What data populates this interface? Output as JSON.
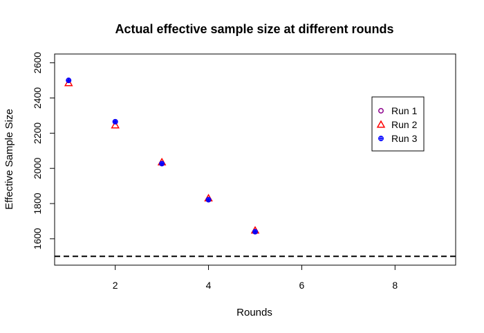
{
  "chart_data": {
    "type": "scatter",
    "title": "Actual effective sample size at different rounds",
    "xlabel": "Rounds",
    "ylabel": "Effective Sample Size",
    "xlim": [
      0.7,
      9.3
    ],
    "ylim": [
      1450,
      2650
    ],
    "x_ticks": [
      2,
      4,
      6,
      8
    ],
    "y_ticks": [
      1600,
      1800,
      2000,
      2200,
      2400,
      2600
    ],
    "reference_line": {
      "y": 1500,
      "style": "dashed"
    },
    "legend_position": "top-right",
    "series": [
      {
        "name": "Run 1",
        "marker": "circle",
        "color": "#8B008B",
        "x": [
          1,
          2,
          3,
          4,
          5
        ],
        "y": [
          2500,
          2265,
          2027,
          1822,
          1640
        ]
      },
      {
        "name": "Run 2",
        "marker": "triangle",
        "color": "#FF0000",
        "x": [
          1,
          2,
          3,
          4,
          5
        ],
        "y": [
          2485,
          2245,
          2035,
          1830,
          1647
        ]
      },
      {
        "name": "Run 3",
        "marker": "circle-plus",
        "color": "#0000FF",
        "x": [
          1,
          2,
          3,
          4,
          5
        ],
        "y": [
          2500,
          2265,
          2027,
          1822,
          1640
        ]
      }
    ]
  }
}
